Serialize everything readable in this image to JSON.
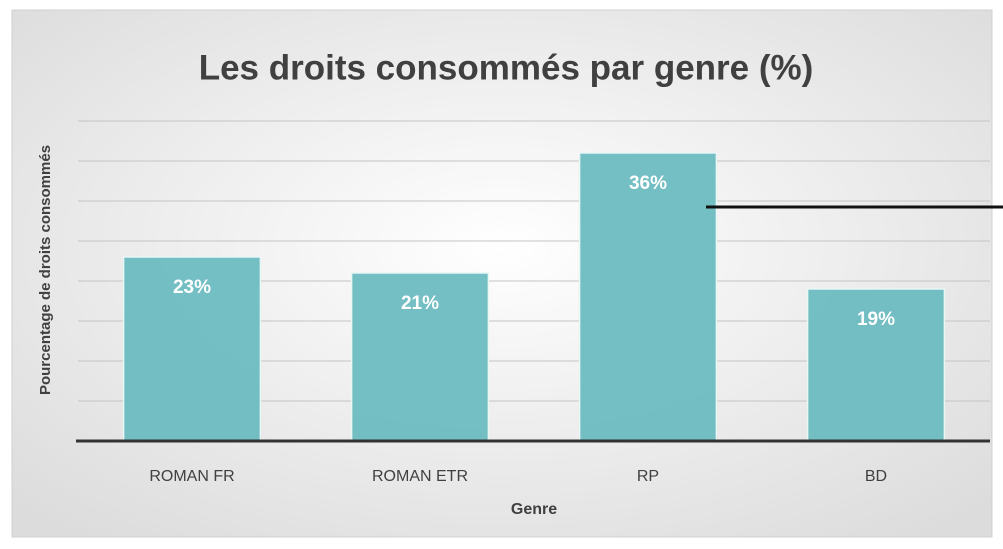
{
  "chart_data": {
    "type": "bar",
    "title": "Les droits consommés par genre (%)",
    "x_label": "Genre",
    "y_label": "Pourcentage de droits consommés",
    "categories": [
      "ROMAN FR",
      "ROMAN ETR",
      "RP",
      "BD"
    ],
    "values": [
      23,
      21,
      36,
      19
    ],
    "value_labels": [
      "23%",
      "21%",
      "36%",
      "19%"
    ],
    "color": "#6cbcc0",
    "ylim": [
      0,
      40
    ],
    "yticks": [
      0,
      5,
      10,
      15,
      20,
      25,
      30,
      35,
      40
    ],
    "grid": true
  }
}
